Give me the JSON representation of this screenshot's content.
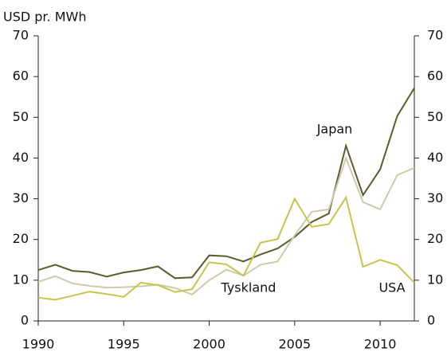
{
  "chart_data": {
    "type": "line",
    "y_label": "USD pr. MWh",
    "x": [
      1990,
      1991,
      1992,
      1993,
      1994,
      1995,
      1996,
      1997,
      1998,
      1999,
      2000,
      2001,
      2002,
      2003,
      2004,
      2005,
      2006,
      2007,
      2008,
      2009,
      2010,
      2011,
      2012
    ],
    "xlim": [
      1990,
      2012
    ],
    "xticks": [
      1990,
      1995,
      2000,
      2005,
      2010
    ],
    "ylim": [
      0,
      70
    ],
    "yticks": [
      0,
      10,
      20,
      30,
      40,
      50,
      60,
      70
    ],
    "y2lim": [
      0,
      70
    ],
    "y2ticks": [
      0,
      10,
      20,
      30,
      40,
      50,
      60,
      70
    ],
    "grid": false,
    "series": [
      {
        "name": "Japan",
        "color": "#5c5a2e",
        "values": [
          12.5,
          13.8,
          12.3,
          12,
          10.9,
          11.9,
          12.5,
          13.4,
          10.5,
          10.7,
          16.1,
          15.9,
          14.6,
          16.3,
          17.8,
          20.6,
          24.3,
          26.4,
          43,
          30.9,
          37.2,
          50.3,
          57.2
        ]
      },
      {
        "name": "Tyskland",
        "color": "#d0c9ab",
        "values": [
          9.6,
          11,
          9.2,
          8.6,
          8.2,
          8.3,
          8.5,
          8.9,
          8.1,
          6.5,
          10,
          12.6,
          11.1,
          13.8,
          14.6,
          21,
          26.8,
          27.4,
          40,
          29.2,
          27.4,
          35.8,
          37.6
        ]
      },
      {
        "name": "USA",
        "color": "#c9c34d",
        "values": [
          5.7,
          5.2,
          6.2,
          7.2,
          6.6,
          5.9,
          9.4,
          8.8,
          7.1,
          7.8,
          14.4,
          13.9,
          11.1,
          19.2,
          20.1,
          30,
          23.1,
          23.8,
          30.3,
          13.3,
          15,
          13.7,
          9.4
        ]
      }
    ]
  }
}
